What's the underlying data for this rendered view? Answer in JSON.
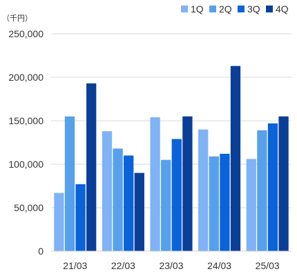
{
  "chart_data": {
    "type": "bar",
    "unit_label": "（千円）",
    "categories": [
      "21/03",
      "22/03",
      "23/03",
      "24/03",
      "25/03"
    ],
    "series": [
      {
        "name": "1Q",
        "color": "#7fb3f5",
        "values": [
          67000,
          138000,
          154000,
          140000,
          106000
        ]
      },
      {
        "name": "2Q",
        "color": "#57a0ec",
        "values": [
          155000,
          118000,
          105000,
          109000,
          139000
        ]
      },
      {
        "name": "3Q",
        "color": "#0a63d8",
        "values": [
          77000,
          110000,
          129000,
          112000,
          147000
        ]
      },
      {
        "name": "4Q",
        "color": "#0b3e96",
        "values": [
          193000,
          90000,
          155000,
          213000,
          155000
        ]
      }
    ],
    "ylim": [
      0,
      250000
    ],
    "yticks": [
      0,
      50000,
      100000,
      150000,
      200000,
      250000
    ],
    "ytick_labels": [
      "0",
      "50,000",
      "100,000",
      "150,000",
      "200,000",
      "250,000"
    ],
    "grid": "horizontal",
    "legend_position": "top-right",
    "xlabel": "",
    "ylabel": ""
  }
}
